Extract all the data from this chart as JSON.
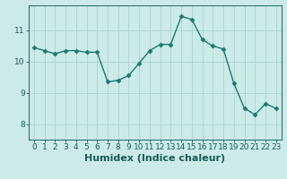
{
  "x": [
    0,
    1,
    2,
    3,
    4,
    5,
    6,
    7,
    8,
    9,
    10,
    11,
    12,
    13,
    14,
    15,
    16,
    17,
    18,
    19,
    20,
    21,
    22,
    23
  ],
  "y": [
    10.45,
    10.35,
    10.25,
    10.35,
    10.35,
    10.3,
    10.3,
    9.35,
    9.4,
    9.55,
    9.95,
    10.35,
    10.55,
    10.55,
    11.45,
    11.35,
    10.7,
    10.5,
    10.4,
    9.3,
    8.5,
    8.3,
    8.65,
    8.5
  ],
  "line_color": "#1a7a6e",
  "marker": "D",
  "markersize": 2.5,
  "linewidth": 1.0,
  "bg_color": "#cceae7",
  "grid_color": "#aad4d0",
  "xlabel": "Humidex (Indice chaleur)",
  "ylim": [
    7.5,
    11.8
  ],
  "yticks": [
    8,
    9,
    10,
    11
  ],
  "xticks": [
    0,
    1,
    2,
    3,
    4,
    5,
    6,
    7,
    8,
    9,
    10,
    11,
    12,
    13,
    14,
    15,
    16,
    17,
    18,
    19,
    20,
    21,
    22,
    23
  ],
  "tick_label_fontsize": 6.5,
  "xlabel_fontsize": 8,
  "axis_color": "#1a5c5c",
  "spine_color": "#2a7070"
}
